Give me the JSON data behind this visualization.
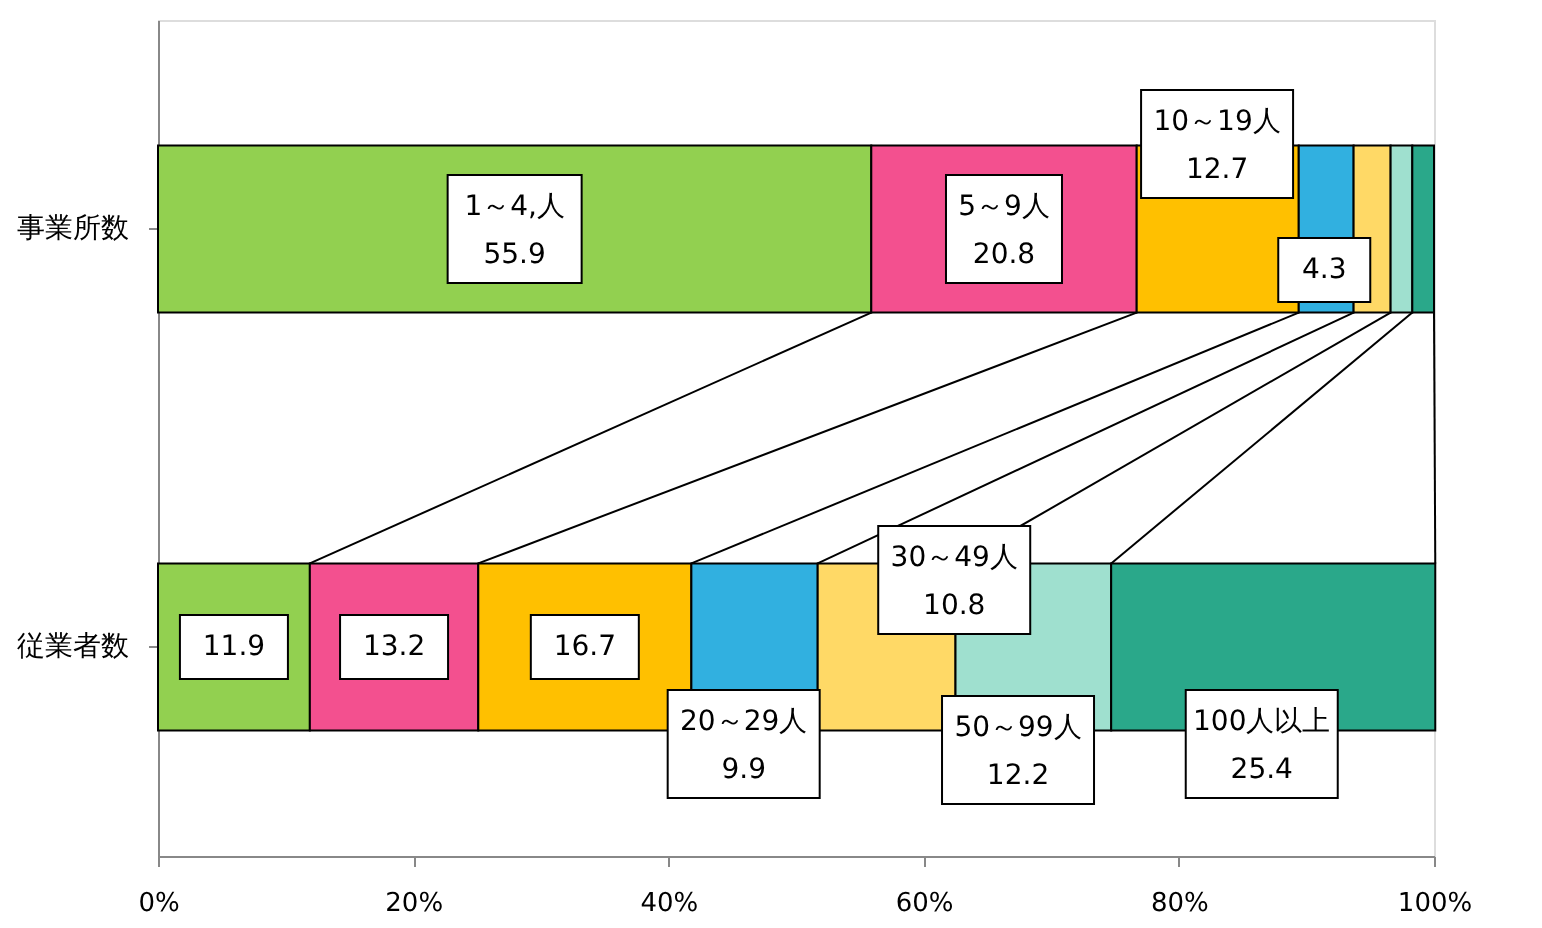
{
  "chart_data": {
    "type": "bar",
    "orientation": "horizontal",
    "stacked": true,
    "legend": false,
    "grid": false,
    "categories": [
      "事業所数",
      "従業者数"
    ],
    "series": [
      {
        "color": "#92d050",
        "values": [
          55.9,
          11.9
        ],
        "value_labels": [
          "1～4,人\n55.9",
          "11.9"
        ]
      },
      {
        "color": "#f3508f",
        "values": [
          20.8,
          13.2
        ],
        "value_labels": [
          "5～9人\n20.8",
          "13.2"
        ]
      },
      {
        "color": "#ffc000",
        "values": [
          12.7,
          16.7
        ],
        "value_labels": [
          "10～19人\n12.7",
          "16.7"
        ]
      },
      {
        "color": "#31b0e0",
        "values": [
          4.3,
          9.9
        ],
        "value_labels": [
          "4.3",
          "20～29人\n9.9"
        ]
      },
      {
        "color": "#ffd966",
        "values": [
          2.9,
          10.8
        ],
        "value_labels": [
          null,
          "30～49人\n10.8"
        ]
      },
      {
        "color": "#9fe0cf",
        "values": [
          1.7,
          12.2
        ],
        "value_labels": [
          null,
          "50～99人\n12.2"
        ]
      },
      {
        "color": "#2aa88a",
        "values": [
          1.7,
          25.4
        ],
        "value_labels": [
          null,
          "100人以上\n25.4"
        ]
      }
    ],
    "xlim": [
      0,
      100
    ],
    "xticks": [
      {
        "value": 0,
        "label": "0%"
      },
      {
        "value": 20,
        "label": "20%"
      },
      {
        "value": 40,
        "label": "40%"
      },
      {
        "value": 60,
        "label": "60%"
      },
      {
        "value": 80,
        "label": "80%"
      },
      {
        "value": 100,
        "label": "100%"
      }
    ]
  }
}
